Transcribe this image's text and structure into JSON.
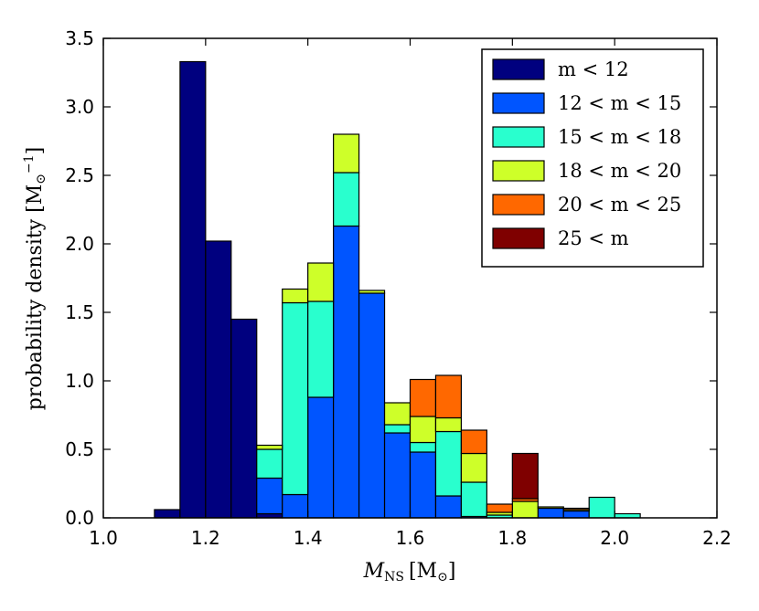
{
  "chart_data": {
    "type": "bar",
    "stacked": true,
    "title": "",
    "xlabel_main": "M",
    "xlabel_sub": "NS",
    "xlabel_unit": "[M",
    "xlabel_unit_sub": "⊙",
    "xlabel_unit_close": "]",
    "ylabel_main": "probability density [M",
    "ylabel_sub": "⊙",
    "ylabel_sup": "−1",
    "ylabel_close": "]",
    "xlim": [
      1.0,
      2.2
    ],
    "ylim": [
      0.0,
      3.5
    ],
    "xticks": [
      "1.0",
      "1.2",
      "1.4",
      "1.6",
      "1.8",
      "2.0",
      "2.2"
    ],
    "yticks": [
      "0.0",
      "0.5",
      "1.0",
      "1.5",
      "2.0",
      "2.5",
      "3.0",
      "3.5"
    ],
    "bins": [
      1.025,
      1.075,
      1.125,
      1.175,
      1.225,
      1.275,
      1.325,
      1.375,
      1.425,
      1.475,
      1.525,
      1.575,
      1.625,
      1.675,
      1.725,
      1.775,
      1.825,
      1.875,
      1.925,
      1.975,
      2.025,
      2.075,
      2.125,
      2.175
    ],
    "bin_width": 0.05,
    "legend_position": "top-right",
    "series": [
      {
        "name": "m < 12",
        "color": "#00007f",
        "values": [
          0,
          0,
          0.06,
          3.33,
          2.02,
          1.45,
          0.03,
          0,
          0,
          0,
          0,
          0,
          0,
          0,
          0,
          0,
          0,
          0,
          0,
          0,
          0,
          0,
          0,
          0
        ]
      },
      {
        "name": "12 < m < 15",
        "color": "#0055ff",
        "values": [
          0,
          0,
          0,
          0,
          0,
          0,
          0.26,
          0.17,
          0.88,
          2.13,
          1.64,
          0.62,
          0.48,
          0.16,
          0.01,
          0,
          0,
          0.07,
          0.05,
          0,
          0,
          0,
          0,
          0
        ]
      },
      {
        "name": "15 < m < 18",
        "color": "#29ffce",
        "values": [
          0,
          0,
          0,
          0,
          0,
          0,
          0.21,
          1.4,
          0.7,
          0.39,
          0,
          0.06,
          0.07,
          0.47,
          0.25,
          0.02,
          0,
          0,
          0,
          0.15,
          0.03,
          0,
          0,
          0
        ]
      },
      {
        "name": "18 < m < 20",
        "color": "#ceff29",
        "values": [
          0,
          0,
          0,
          0,
          0,
          0,
          0.03,
          0.1,
          0.28,
          0.28,
          0.02,
          0.16,
          0.19,
          0.1,
          0.21,
          0.02,
          0.12,
          0.01,
          0.01,
          0,
          0,
          0,
          0,
          0
        ]
      },
      {
        "name": "20 < m < 25",
        "color": "#ff6800",
        "values": [
          0,
          0,
          0,
          0,
          0,
          0,
          0,
          0,
          0,
          0,
          0,
          0,
          0.27,
          0.31,
          0.17,
          0.06,
          0.02,
          0,
          0.01,
          0,
          0,
          0,
          0,
          0
        ]
      },
      {
        "name": "25 < m",
        "color": "#7f0000",
        "values": [
          0,
          0,
          0,
          0,
          0,
          0,
          0,
          0,
          0,
          0,
          0,
          0,
          0,
          0,
          0,
          0,
          0.33,
          0,
          0,
          0,
          0,
          0,
          0,
          0
        ]
      }
    ]
  }
}
